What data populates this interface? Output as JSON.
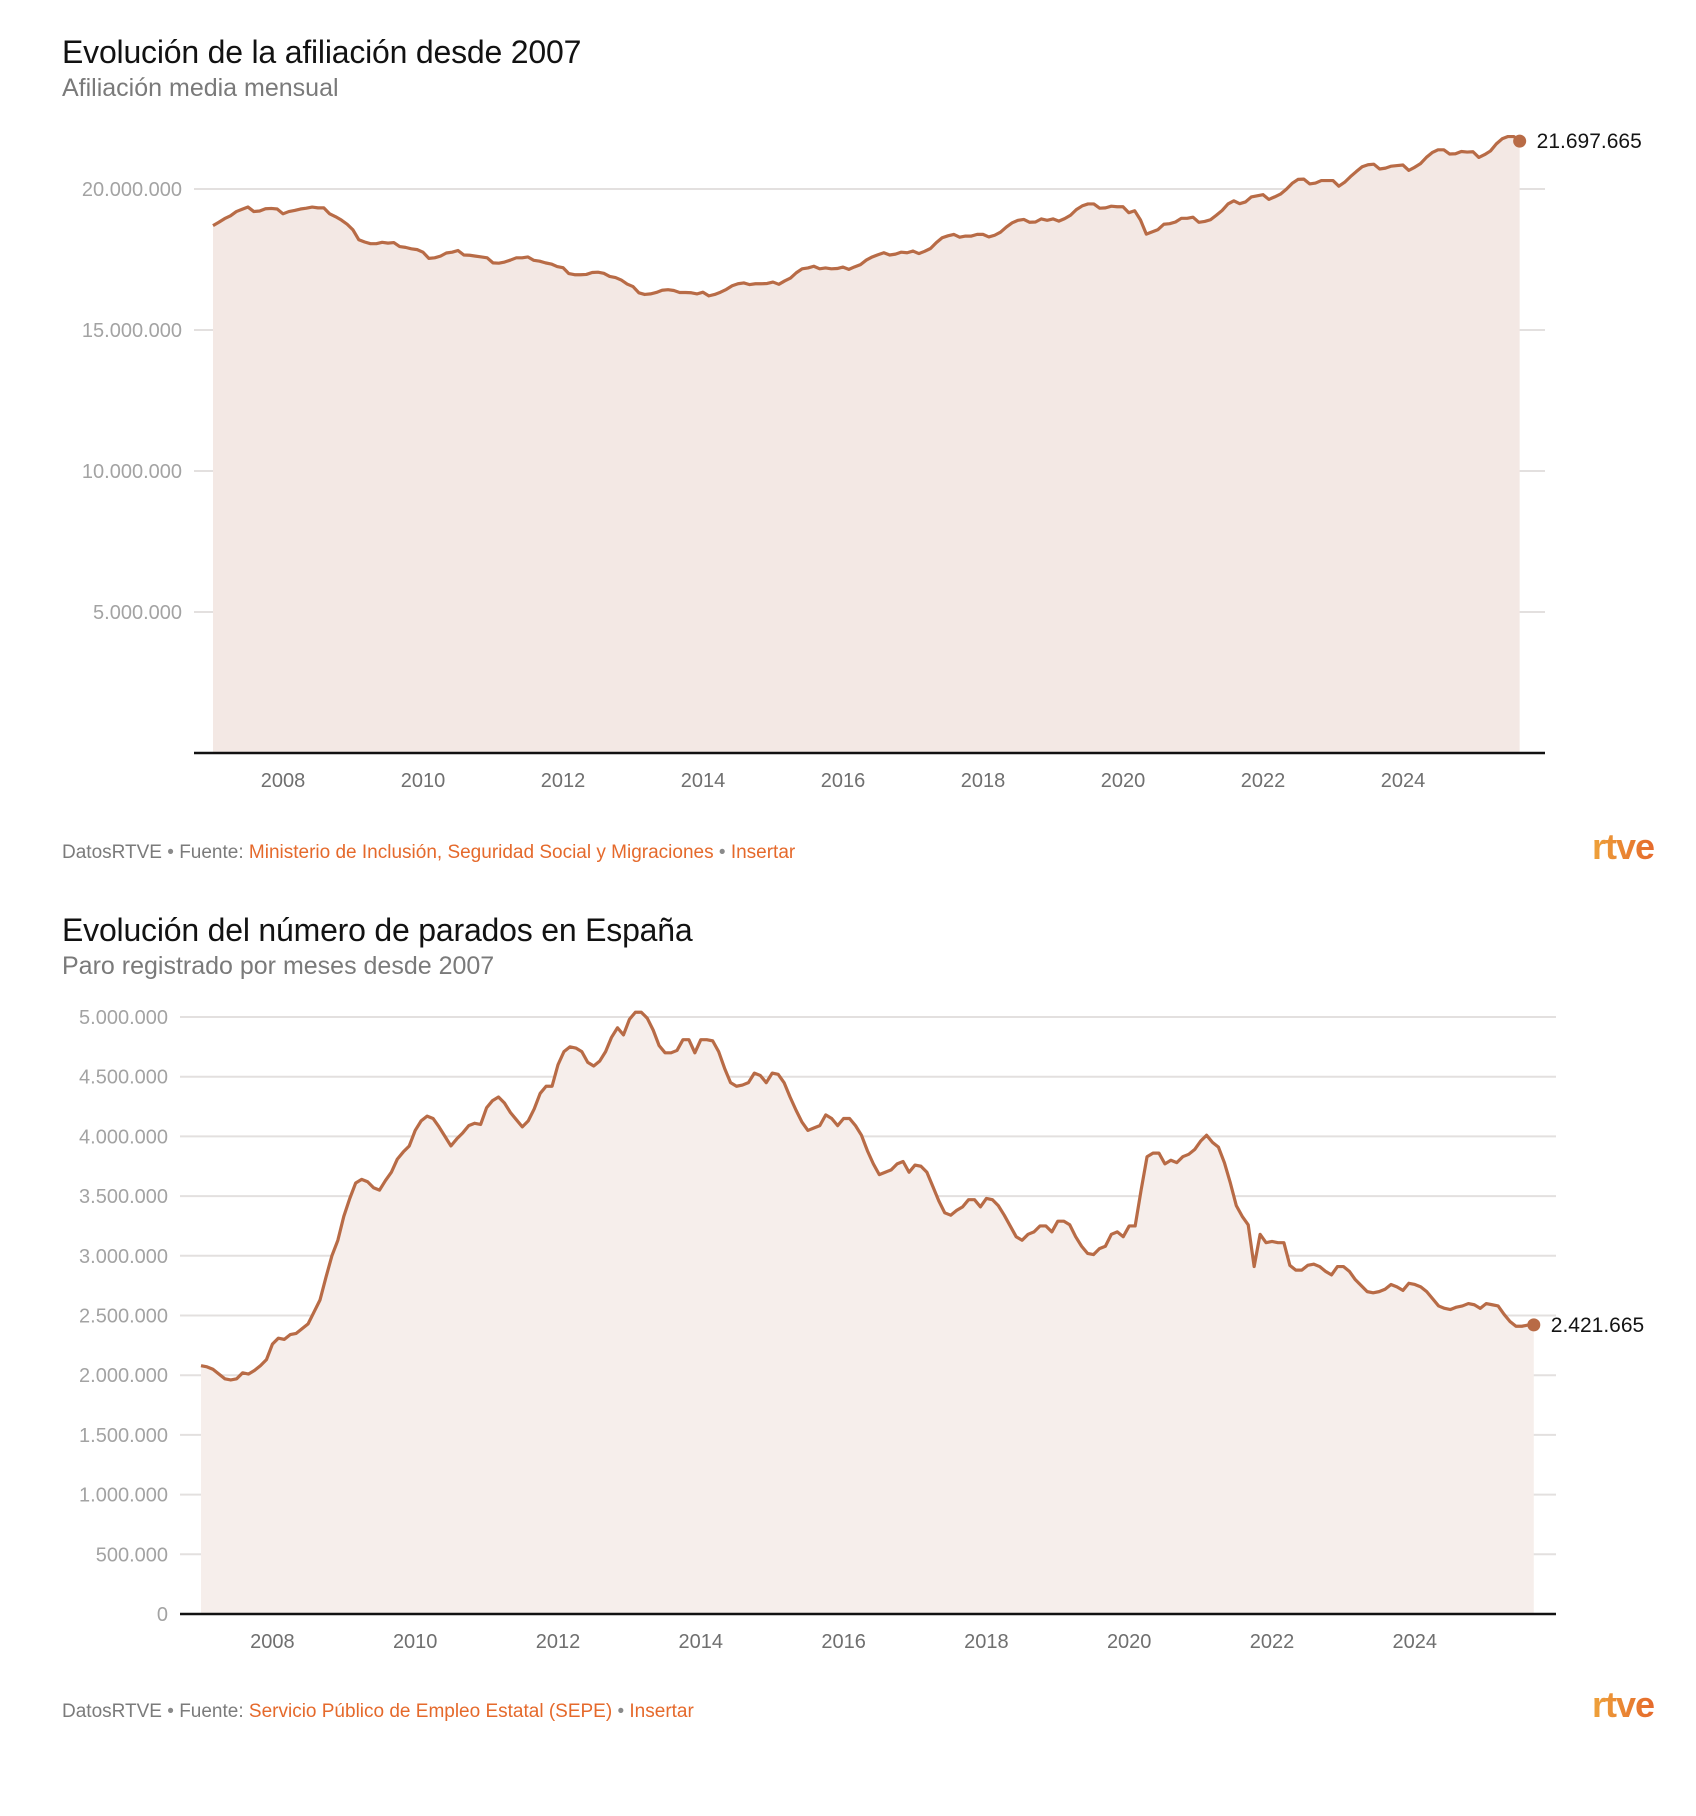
{
  "charts": [
    {
      "title": "Evolución de la afiliación desde 2007",
      "subtitle": "Afiliación media mensual",
      "footer": {
        "brand": "DatosRTVE",
        "source_label": "Fuente:",
        "source_link": "Ministerio de Inclusión, Seguridad Social y Migraciones",
        "embed_link": "Insertar",
        "separator": "•"
      },
      "logo": "rtve",
      "end_label": "21.697.665"
    },
    {
      "title": "Evolución del número de parados en España",
      "subtitle": "Paro registrado por meses desde 2007",
      "footer": {
        "brand": "DatosRTVE",
        "source_label": "Fuente:",
        "source_link": "Servicio Público de Empleo Estatal (SEPE)",
        "embed_link": "Insertar",
        "separator": "•"
      },
      "logo": "rtve",
      "end_label": "2.421.665"
    }
  ],
  "colors": {
    "line": "#b86b46",
    "area_1": "#f3e8e4",
    "area_2": "#f6eeeb",
    "grid": "#e3e0df",
    "axis": "#111111",
    "link": "#e5692b"
  },
  "chart_data": [
    {
      "type": "area",
      "title": "Evolución de la afiliación desde 2007",
      "subtitle": "Afiliación media mensual",
      "xlabel": "",
      "ylabel": "",
      "x_start": "2007-01",
      "x_frequency": "monthly",
      "x_range": [
        2007.0,
        2025.75
      ],
      "ylim": [
        0,
        22000000
      ],
      "y_ticks": [
        5000000,
        10000000,
        15000000,
        20000000
      ],
      "y_tick_labels": [
        "5.000.000",
        "10.000.000",
        "15.000.000",
        "20.000.000"
      ],
      "x_ticks": [
        2008,
        2010,
        2012,
        2014,
        2016,
        2018,
        2020,
        2022,
        2024
      ],
      "x_tick_labels": [
        "2008",
        "2010",
        "2012",
        "2014",
        "2016",
        "2018",
        "2020",
        "2022",
        "2024"
      ],
      "grid": true,
      "legend": "none",
      "annotation": {
        "label": "21.697.665",
        "position": "last-point-right"
      },
      "series": [
        {
          "name": "Afiliación media mensual",
          "unit": "thousands",
          "values": [
            18700,
            18820,
            18950,
            19050,
            19200,
            19280,
            19360,
            19200,
            19220,
            19300,
            19310,
            19290,
            19120,
            19200,
            19240,
            19290,
            19320,
            19360,
            19330,
            19330,
            19120,
            19020,
            18900,
            18750,
            18550,
            18200,
            18120,
            18060,
            18060,
            18110,
            18080,
            18100,
            17960,
            17930,
            17880,
            17850,
            17760,
            17540,
            17560,
            17620,
            17730,
            17760,
            17820,
            17660,
            17650,
            17620,
            17590,
            17560,
            17380,
            17370,
            17410,
            17480,
            17560,
            17560,
            17590,
            17470,
            17440,
            17380,
            17340,
            17250,
            17210,
            17000,
            16960,
            16960,
            16970,
            17040,
            17050,
            17010,
            16900,
            16860,
            16770,
            16630,
            16540,
            16320,
            16260,
            16280,
            16330,
            16410,
            16430,
            16400,
            16330,
            16330,
            16320,
            16280,
            16340,
            16210,
            16260,
            16340,
            16440,
            16570,
            16640,
            16670,
            16610,
            16640,
            16640,
            16650,
            16700,
            16620,
            16740,
            16840,
            17030,
            17170,
            17200,
            17260,
            17170,
            17200,
            17170,
            17180,
            17230,
            17150,
            17240,
            17320,
            17480,
            17590,
            17670,
            17740,
            17660,
            17690,
            17760,
            17740,
            17800,
            17710,
            17790,
            17890,
            18100,
            18270,
            18340,
            18390,
            18290,
            18330,
            18330,
            18390,
            18390,
            18300,
            18360,
            18470,
            18650,
            18800,
            18890,
            18920,
            18820,
            18830,
            18940,
            18890,
            18940,
            18860,
            18950,
            19070,
            19270,
            19400,
            19470,
            19470,
            19320,
            19330,
            19390,
            19370,
            19370,
            19160,
            19230,
            18900,
            18400,
            18480,
            18560,
            18750,
            18770,
            18830,
            18960,
            18960,
            19000,
            18820,
            18850,
            18910,
            19070,
            19240,
            19470,
            19580,
            19480,
            19540,
            19720,
            19760,
            19800,
            19630,
            19720,
            19820,
            19990,
            20200,
            20340,
            20350,
            20180,
            20210,
            20300,
            20300,
            20300,
            20100,
            20240,
            20440,
            20620,
            20790,
            20860,
            20880,
            20710,
            20740,
            20810,
            20830,
            20850,
            20660,
            20770,
            20900,
            21120,
            21290,
            21390,
            21390,
            21240,
            21250,
            21330,
            21310,
            21320,
            21120,
            21220,
            21350,
            21600,
            21780,
            21860,
            21860,
            21697.665
          ]
        }
      ]
    },
    {
      "type": "area",
      "title": "Evolución del número de parados en España",
      "subtitle": "Paro registrado por meses desde 2007",
      "xlabel": "",
      "ylabel": "",
      "x_start": "2007-01",
      "x_frequency": "monthly",
      "x_range": [
        2006.75,
        2025.95
      ],
      "ylim": [
        0,
        5000000
      ],
      "y_ticks": [
        0,
        500000,
        1000000,
        1500000,
        2000000,
        2500000,
        3000000,
        3500000,
        4000000,
        4500000,
        5000000
      ],
      "y_tick_labels": [
        "0",
        "500.000",
        "1.000.000",
        "1.500.000",
        "2.000.000",
        "2.500.000",
        "3.000.000",
        "3.500.000",
        "4.000.000",
        "4.500.000",
        "5.000.000"
      ],
      "x_ticks": [
        2008,
        2010,
        2012,
        2014,
        2016,
        2018,
        2020,
        2022,
        2024
      ],
      "x_tick_labels": [
        "2008",
        "2010",
        "2012",
        "2014",
        "2016",
        "2018",
        "2020",
        "2022",
        "2024"
      ],
      "grid": true,
      "legend": "none",
      "annotation": {
        "label": "2.421.665",
        "position": "last-point-right"
      },
      "series": [
        {
          "name": "Paro registrado",
          "unit": "thousands",
          "values": [
            2080,
            2070,
            2050,
            2010,
            1970,
            1960,
            1970,
            2020,
            2010,
            2040,
            2080,
            2130,
            2260,
            2310,
            2300,
            2340,
            2350,
            2390,
            2430,
            2530,
            2630,
            2820,
            3000,
            3130,
            3330,
            3480,
            3610,
            3640,
            3620,
            3570,
            3550,
            3630,
            3700,
            3810,
            3870,
            3920,
            4050,
            4130,
            4170,
            4150,
            4080,
            4000,
            3920,
            3980,
            4030,
            4090,
            4110,
            4100,
            4240,
            4300,
            4330,
            4280,
            4200,
            4140,
            4080,
            4130,
            4230,
            4360,
            4420,
            4420,
            4600,
            4710,
            4750,
            4740,
            4710,
            4620,
            4590,
            4630,
            4710,
            4830,
            4910,
            4850,
            4980,
            5040,
            5040,
            4990,
            4890,
            4760,
            4700,
            4700,
            4720,
            4810,
            4810,
            4700,
            4810,
            4810,
            4800,
            4710,
            4570,
            4450,
            4420,
            4430,
            4450,
            4530,
            4510,
            4450,
            4530,
            4520,
            4450,
            4330,
            4220,
            4120,
            4050,
            4070,
            4090,
            4180,
            4150,
            4090,
            4150,
            4150,
            4090,
            4010,
            3880,
            3770,
            3680,
            3700,
            3720,
            3770,
            3790,
            3700,
            3760,
            3750,
            3700,
            3580,
            3460,
            3360,
            3340,
            3380,
            3410,
            3470,
            3470,
            3410,
            3480,
            3470,
            3420,
            3340,
            3250,
            3160,
            3130,
            3180,
            3200,
            3250,
            3250,
            3200,
            3290,
            3290,
            3260,
            3160,
            3080,
            3020,
            3010,
            3060,
            3080,
            3180,
            3200,
            3160,
            3250,
            3250,
            3550,
            3830,
            3860,
            3860,
            3770,
            3800,
            3780,
            3830,
            3850,
            3890,
            3960,
            4010,
            3950,
            3910,
            3780,
            3610,
            3420,
            3330,
            3260,
            2910,
            3180,
            3110,
            3120,
            3110,
            3110,
            2920,
            2880,
            2880,
            2920,
            2930,
            2910,
            2870,
            2840,
            2910,
            2910,
            2870,
            2800,
            2750,
            2700,
            2690,
            2700,
            2720,
            2760,
            2740,
            2710,
            2770,
            2760,
            2740,
            2700,
            2640,
            2580,
            2560,
            2550,
            2570,
            2580,
            2600,
            2590,
            2560,
            2600,
            2590,
            2580,
            2510,
            2450,
            2410,
            2410,
            2420,
            2421.665
          ]
        }
      ]
    }
  ]
}
